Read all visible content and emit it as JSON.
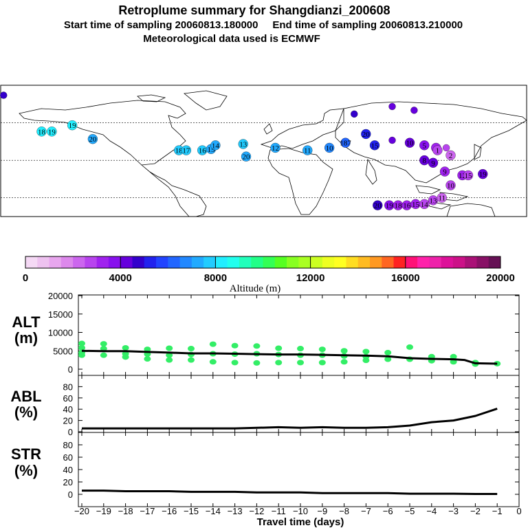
{
  "header": {
    "title": "Retroplume summary for Shangdianzi_200608",
    "sampling": "Start time of sampling 20060813.180000     End time of sampling 20060813.210000",
    "met": "Meteorological data used is ECMWF"
  },
  "colors": {
    "line": "#000000",
    "alt_points": "#33ee66",
    "scale": [
      "#f5d9f5",
      "#eec2f0",
      "#e8a6ee",
      "#dd88ec",
      "#cc66ee",
      "#b844ee",
      "#a022ee",
      "#8811ee",
      "#6600dd",
      "#3300cc",
      "#2222ee",
      "#2244ff",
      "#2266ff",
      "#2288ff",
      "#22aaff",
      "#22ccff",
      "#22eeff",
      "#22ffee",
      "#22ffbb",
      "#22ff88",
      "#33ff55",
      "#55ff22",
      "#88ff22",
      "#aaff22",
      "#ccff22",
      "#eeff22",
      "#ffff22",
      "#ffdd22",
      "#ffbb22",
      "#ff9922",
      "#ff6622",
      "#ff2222",
      "#ff1177",
      "#ff22aa",
      "#ee22aa",
      "#dd1199",
      "#cc1188",
      "#aa1177",
      "#881166",
      "#661155"
    ]
  },
  "map": {
    "clusters": [
      {
        "label": "",
        "lon": -178,
        "lat": 82,
        "alt": 4500
      },
      {
        "label": "18",
        "lon": -152,
        "lat": 53,
        "alt": 8000
      },
      {
        "label": "19",
        "lon": -145,
        "lat": 53,
        "alt": 8000
      },
      {
        "label": "19",
        "lon": -131,
        "lat": 58,
        "alt": 8000
      },
      {
        "label": "20",
        "lon": -117,
        "lat": 47,
        "alt": 7200
      },
      {
        "label": "18",
        "lon": -58,
        "lat": 38,
        "alt": 7600
      },
      {
        "label": "17",
        "lon": -53,
        "lat": 38,
        "alt": 7600
      },
      {
        "label": "16",
        "lon": -42,
        "lat": 38,
        "alt": 7600
      },
      {
        "label": "15",
        "lon": -36,
        "lat": 39,
        "alt": 7400
      },
      {
        "label": "14",
        "lon": -33,
        "lat": 42,
        "alt": 7400
      },
      {
        "label": "13",
        "lon": -14,
        "lat": 43,
        "alt": 7500
      },
      {
        "label": "20",
        "lon": -12,
        "lat": 33,
        "alt": 7400
      },
      {
        "label": "12",
        "lon": 8,
        "lat": 40,
        "alt": 7200
      },
      {
        "label": "11",
        "lon": 30,
        "lat": 38,
        "alt": 7000
      },
      {
        "label": "10",
        "lon": 45,
        "lat": 40,
        "alt": 6800
      },
      {
        "label": "187",
        "lon": 56,
        "lat": 44,
        "alt": 6000
      },
      {
        "label": "20",
        "lon": 70,
        "lat": 51,
        "alt": 5200
      },
      {
        "label": "",
        "lon": 62,
        "lat": 67,
        "alt": 4600
      },
      {
        "label": "",
        "lon": 88,
        "lat": 73,
        "alt": 4300
      },
      {
        "label": "",
        "lon": 103,
        "lat": 70,
        "alt": 4400
      },
      {
        "label": "15",
        "lon": 76,
        "lat": 42,
        "alt": 5000
      },
      {
        "label": "",
        "lon": 88,
        "lat": 46,
        "alt": 4300
      },
      {
        "label": "10",
        "lon": 100,
        "lat": 44,
        "alt": 4000
      },
      {
        "label": "5",
        "lon": 110,
        "lat": 42,
        "alt": 3600
      },
      {
        "label": "4",
        "lon": 118,
        "lat": 40,
        "alt": 3200
      },
      {
        "label": "",
        "lon": 125,
        "lat": 40,
        "alt": 2800
      },
      {
        "label": "2",
        "lon": 128,
        "lat": 34,
        "alt": 2400
      },
      {
        "label": "1",
        "lon": 119,
        "lat": 38,
        "alt": 2600
      },
      {
        "label": "9",
        "lon": 116,
        "lat": 28,
        "alt": 4400
      },
      {
        "label": "8",
        "lon": 110,
        "lat": 30,
        "alt": 4200
      },
      {
        "label": "9",
        "lon": 124,
        "lat": 21,
        "alt": 3300
      },
      {
        "label": "12",
        "lon": 136,
        "lat": 18,
        "alt": 3000
      },
      {
        "label": "15",
        "lon": 140,
        "lat": 18,
        "alt": 2800
      },
      {
        "label": "19",
        "lon": 150,
        "lat": 19,
        "alt": 4000
      },
      {
        "label": "10",
        "lon": 128,
        "lat": 10,
        "alt": 2600
      },
      {
        "label": "20",
        "lon": 78,
        "lat": -6,
        "alt": 4500
      },
      {
        "label": "19",
        "lon": 86,
        "lat": -6,
        "alt": 3600
      },
      {
        "label": "18",
        "lon": 92,
        "lat": -6,
        "alt": 3400
      },
      {
        "label": "16",
        "lon": 98,
        "lat": -6,
        "alt": 3200
      },
      {
        "label": "15",
        "lon": 104,
        "lat": -5,
        "alt": 3000
      },
      {
        "label": "14",
        "lon": 110,
        "lat": -5,
        "alt": 2800
      },
      {
        "label": "13",
        "lon": 116,
        "lat": -2,
        "alt": 2600
      },
      {
        "label": "11",
        "lon": 122,
        "lat": 0,
        "alt": 2400
      }
    ]
  },
  "colorbar": {
    "ticks": [
      "0",
      "4000",
      "8000",
      "12000",
      "16000",
      "20000"
    ],
    "label": "Altitude (m)"
  },
  "panels": {
    "alt": {
      "label_top": "ALT",
      "label_bottom": "(m)",
      "yticks": [
        "0",
        "5000",
        "10000",
        "15000",
        "20000"
      ]
    },
    "abl": {
      "label_top": "ABL",
      "label_bottom": "(%)",
      "yticks": [
        "0",
        "20",
        "40",
        "60",
        "80"
      ]
    },
    "str": {
      "label_top": "STR",
      "label_bottom": "(%)",
      "yticks": [
        "0",
        "20",
        "40",
        "60",
        "80"
      ]
    }
  },
  "xaxis": {
    "ticks": [
      "−20",
      "−19",
      "−18",
      "−17",
      "−16",
      "−15",
      "−14",
      "−13",
      "−12",
      "−11",
      "−10",
      "−9",
      "−8",
      "−7",
      "−6",
      "−5",
      "−4",
      "−3",
      "−2",
      "−1",
      "0"
    ],
    "label": "Travel time (days)"
  },
  "chart_data": [
    {
      "type": "line",
      "title": "ALT",
      "xlabel": "Travel time (days)",
      "ylabel": "ALT (m)",
      "xlim": [
        -20,
        0
      ],
      "ylim": [
        0,
        20000
      ],
      "x": [
        -20,
        -19,
        -18,
        -17,
        -16,
        -15,
        -14,
        -13,
        -12,
        -11,
        -10,
        -9,
        -8,
        -7,
        -6,
        -5,
        -4,
        -3,
        -2.5,
        -2,
        -1
      ],
      "series": [
        {
          "name": "mean altitude",
          "values": [
            5000,
            4900,
            4900,
            4700,
            4500,
            4300,
            4300,
            4200,
            4100,
            4000,
            4000,
            3900,
            3800,
            3700,
            3500,
            3000,
            2800,
            2700,
            2500,
            1600,
            1500
          ]
        }
      ],
      "scatter": {
        "x": [
          -20,
          -20,
          -20,
          -20,
          -19,
          -19,
          -19,
          -18,
          -18,
          -18,
          -17,
          -17,
          -17,
          -16,
          -16,
          -16,
          -15,
          -15,
          -15,
          -14,
          -14,
          -14,
          -13,
          -13,
          -13,
          -12,
          -12,
          -12,
          -11,
          -11,
          -11,
          -10,
          -10,
          -10,
          -9,
          -9,
          -9,
          -8,
          -8,
          -8,
          -7,
          -7,
          -7,
          -6,
          -6,
          -5,
          -5,
          -4,
          -4,
          -3,
          -3,
          -2,
          -2,
          -1
        ],
        "y": [
          7000,
          5800,
          4500,
          3800,
          6900,
          5600,
          3800,
          5800,
          4200,
          3300,
          5400,
          4100,
          2800,
          5700,
          3800,
          2500,
          5600,
          4000,
          2500,
          6800,
          4200,
          2000,
          6400,
          4100,
          1800,
          6300,
          4200,
          1700,
          5700,
          4000,
          1800,
          5600,
          3800,
          1800,
          5400,
          3800,
          1800,
          5000,
          3600,
          2000,
          4800,
          3400,
          2400,
          4500,
          2700,
          6000,
          2700,
          3400,
          2300,
          3400,
          2000,
          1800,
          1400,
          1500
        ]
      }
    },
    {
      "type": "line",
      "title": "ABL",
      "xlabel": "Travel time (days)",
      "ylabel": "ABL (%)",
      "xlim": [
        -20,
        0
      ],
      "ylim": [
        0,
        100
      ],
      "x": [
        -20,
        -19,
        -18,
        -17,
        -16,
        -15,
        -14,
        -13,
        -12,
        -11,
        -10,
        -9,
        -8,
        -7,
        -6,
        -5,
        -4,
        -3,
        -2,
        -1
      ],
      "series": [
        {
          "name": "ABL",
          "values": [
            6,
            6,
            6,
            6,
            6,
            6,
            6,
            6,
            7,
            8,
            7,
            8,
            7,
            7,
            8,
            11,
            17,
            20,
            28,
            41
          ]
        }
      ]
    },
    {
      "type": "line",
      "title": "STR",
      "xlabel": "Travel time (days)",
      "ylabel": "STR (%)",
      "xlim": [
        -20,
        0
      ],
      "ylim": [
        0,
        100
      ],
      "x": [
        -20,
        -19,
        -18,
        -17,
        -16,
        -15,
        -14,
        -13,
        -12,
        -11,
        -10,
        -9,
        -8,
        -7,
        -6,
        -5,
        -4,
        -3,
        -2,
        -1
      ],
      "series": [
        {
          "name": "STR",
          "values": [
            6,
            6,
            5,
            5,
            5,
            4,
            4,
            4,
            3,
            3,
            3,
            2,
            2,
            2,
            2,
            1,
            1,
            1,
            0.5,
            0.5
          ]
        }
      ]
    }
  ]
}
